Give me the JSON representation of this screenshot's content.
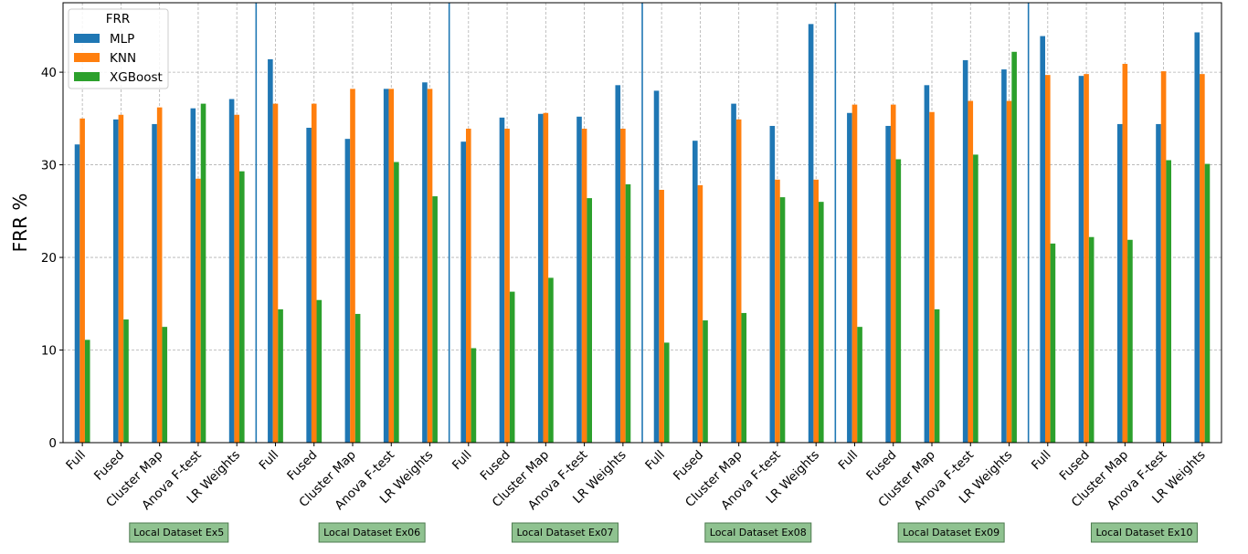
{
  "chart_data": {
    "type": "bar",
    "ylabel": "FRR %",
    "ylim": [
      0,
      47.5
    ],
    "yticks": [
      0,
      10,
      20,
      30,
      40
    ],
    "grid": true,
    "legend": {
      "title": "FRR",
      "placement": "top-left"
    },
    "categories": [
      "Full",
      "Fused",
      "Cluster Map",
      "Anova F-test",
      "LR Weights",
      "Full",
      "Fused",
      "Cluster Map",
      "Anova F-test",
      "LR Weights",
      "Full",
      "Fused",
      "Cluster Map",
      "Anova F-test",
      "LR Weights",
      "Full",
      "Fused",
      "Cluster Map",
      "Anova F-test",
      "LR Weights",
      "Full",
      "Fused",
      "Cluster Map",
      "Anova F-test",
      "LR Weights",
      "Full",
      "Fused",
      "Cluster Map",
      "Anova F-test",
      "LR Weights"
    ],
    "groups": [
      "Local Dataset Ex5",
      "Local Dataset Ex06",
      "Local Dataset Ex07",
      "Local Dataset Ex08",
      "Local Dataset Ex09",
      "Local Dataset Ex10"
    ],
    "series": [
      {
        "name": "MLP",
        "color": "#1f77b4",
        "values": [
          32.2,
          34.9,
          34.4,
          36.1,
          37.1,
          41.4,
          34.0,
          32.8,
          38.2,
          38.9,
          32.5,
          35.1,
          35.5,
          35.2,
          38.6,
          38.0,
          32.6,
          36.6,
          34.2,
          45.2,
          35.6,
          34.2,
          38.6,
          41.3,
          40.3,
          43.9,
          39.6,
          34.4,
          34.4,
          44.3
        ]
      },
      {
        "name": "KNN",
        "color": "#ff7f0e",
        "values": [
          35.0,
          35.4,
          36.2,
          28.5,
          35.4,
          36.6,
          36.6,
          38.2,
          38.2,
          38.2,
          33.9,
          33.9,
          35.6,
          33.9,
          33.9,
          27.3,
          27.8,
          34.9,
          28.4,
          28.4,
          36.5,
          36.5,
          35.7,
          36.9,
          36.9,
          39.7,
          39.8,
          40.9,
          40.1,
          39.8
        ]
      },
      {
        "name": "XGBoost",
        "color": "#2ca02c",
        "values": [
          11.1,
          13.3,
          12.5,
          36.6,
          29.3,
          14.4,
          15.4,
          13.9,
          30.3,
          26.6,
          10.2,
          16.3,
          17.8,
          26.4,
          27.9,
          10.8,
          13.2,
          14.0,
          26.5,
          26.0,
          12.5,
          30.6,
          14.4,
          31.1,
          42.2,
          21.5,
          22.2,
          21.9,
          30.5,
          30.1
        ]
      }
    ]
  }
}
